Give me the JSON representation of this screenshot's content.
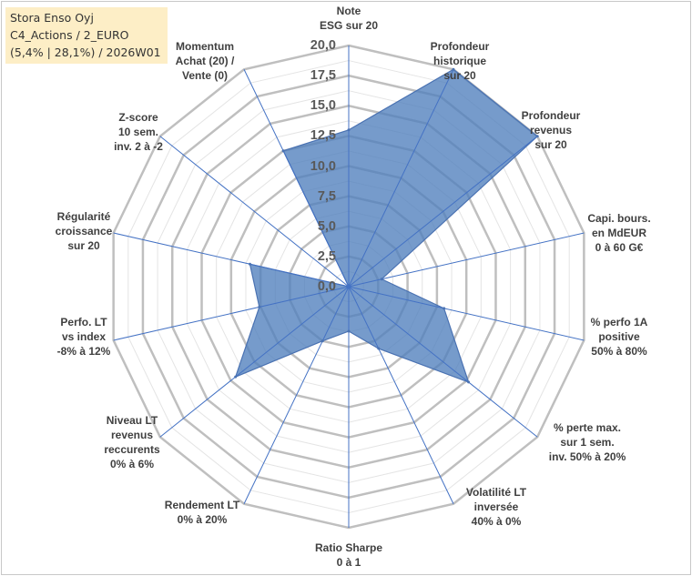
{
  "title_box": {
    "line1": "Stora Enso Oyj",
    "line2": "C4_Actions / 2_EURO",
    "line3": "(5,4% | 28,1%) / 2026W01"
  },
  "chart_data": {
    "type": "radar",
    "rmin": 0,
    "rmax": 20,
    "tick_step": 2.5,
    "tick_labels": [
      "0,0",
      "2,5",
      "5,0",
      "7,5",
      "10,0",
      "12,5",
      "15,0",
      "17,5",
      "20,0"
    ],
    "axes": [
      {
        "label": [
          "Note",
          "ESG sur 20"
        ],
        "value": 13.0
      },
      {
        "label": [
          "Profondeur",
          "historique",
          "sur 20"
        ],
        "value": 20.0
      },
      {
        "label": [
          "Profondeur",
          "revenus",
          "sur 20"
        ],
        "value": 20.0
      },
      {
        "label": [
          "Capi. bours.",
          "en MdEUR",
          "0 à 60 G€"
        ],
        "value": 2.8
      },
      {
        "label": [
          "% perfo 1A",
          "positive",
          "50% à 80%"
        ],
        "value": 8.1
      },
      {
        "label": [
          "% perte max.",
          "sur 1 sem.",
          "inv. 50% à 20%"
        ],
        "value": 12.7
      },
      {
        "label": [
          "Volatilité LT",
          "inversée",
          "40% à 0%"
        ],
        "value": 5.7
      },
      {
        "label": [
          "Ratio Sharpe",
          "0 à 1"
        ],
        "value": 3.7
      },
      {
        "label": [
          "Rendement LT",
          "0% à 20%"
        ],
        "value": 5.0
      },
      {
        "label": [
          "Niveau LT",
          "revenus",
          "reccurents",
          "0% à 6%"
        ],
        "value": 12.0
      },
      {
        "label": [
          "Perfo. LT",
          "vs index",
          "-8% à 12%"
        ],
        "value": 7.6
      },
      {
        "label": [
          "Régularité",
          "croissance",
          "sur 20"
        ],
        "value": 8.4
      },
      {
        "label": [
          "Z-score",
          "10 sem.",
          "inv. 2 à -2"
        ],
        "value": 0.0
      },
      {
        "label": [
          "Momentum",
          "Achat (20) /",
          "Vente (0)"
        ],
        "value": 12.5
      }
    ],
    "colors": {
      "fill": "#4f7fbd",
      "stroke": "#4a72b2",
      "spoke": "#4472c4",
      "major_grid": "#bfbfbf",
      "minor_grid": "#e4e4e4"
    }
  }
}
